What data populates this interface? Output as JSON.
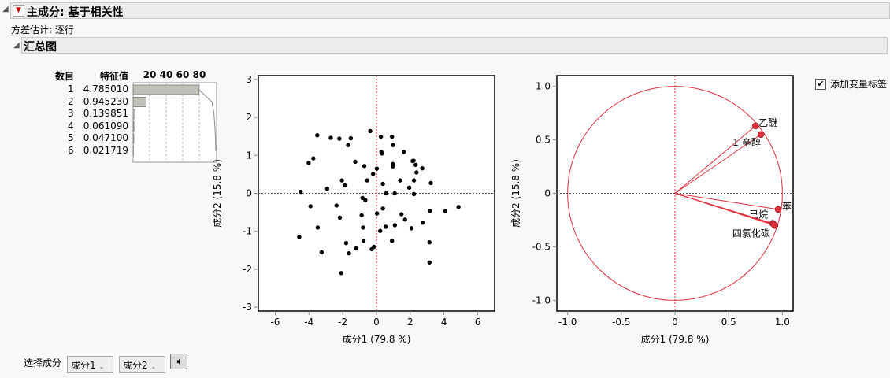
{
  "header": {
    "title": "主成分: 基于相关性",
    "subtitle": "方差估计: 逐行"
  },
  "section": {
    "title": "汇总图"
  },
  "eigen_table": {
    "col_number": "数目",
    "col_eigen": "特征值",
    "percent_ticks": [
      "20",
      "40",
      "60",
      "80"
    ],
    "rows": [
      {
        "n": "1",
        "v": "4.785010"
      },
      {
        "n": "2",
        "v": "0.945230"
      },
      {
        "n": "3",
        "v": "0.139851"
      },
      {
        "n": "4",
        "v": "0.061090"
      },
      {
        "n": "5",
        "v": "0.047100"
      },
      {
        "n": "6",
        "v": "0.021719"
      }
    ],
    "percent": [
      79.75,
      15.75,
      2.33,
      1.02,
      0.79,
      0.36
    ],
    "cumulative": [
      79.75,
      95.5,
      97.83,
      98.85,
      99.64,
      100
    ]
  },
  "chart_data": [
    {
      "type": "scatter",
      "xlabel": "成分1  (79.8 %)",
      "ylabel": "成分2  (15.8 %)",
      "xlim": [
        -7,
        7
      ],
      "ylim": [
        -3.1,
        3.1
      ],
      "xticks": [
        -6,
        -4,
        -2,
        0,
        2,
        4,
        6
      ],
      "yticks": [
        -3,
        -2,
        -1,
        0,
        1,
        2,
        3
      ],
      "reference_line_color": "#e0202e",
      "points": [
        [
          -3.51,
          1.53
        ],
        [
          -2.71,
          1.46
        ],
        [
          -2.2,
          1.44
        ],
        [
          -1.52,
          1.45
        ],
        [
          -1.68,
          1.27
        ],
        [
          -0.37,
          1.64
        ],
        [
          0.26,
          1.49
        ],
        [
          0.92,
          1.49
        ],
        [
          0.98,
          1.27
        ],
        [
          0.29,
          1.09
        ],
        [
          0.32,
          1.05
        ],
        [
          1.62,
          1.09
        ],
        [
          -3.74,
          0.92
        ],
        [
          -4.02,
          0.8
        ],
        [
          -1.26,
          0.83
        ],
        [
          -0.72,
          0.72
        ],
        [
          0.02,
          0.65
        ],
        [
          0.97,
          0.77
        ],
        [
          0.97,
          0.71
        ],
        [
          2.14,
          0.85
        ],
        [
          2.2,
          0.86
        ],
        [
          2.32,
          0.75
        ],
        [
          2.71,
          0.66
        ],
        [
          2.37,
          0.55
        ],
        [
          -0.2,
          0.51
        ],
        [
          -2.05,
          0.34
        ],
        [
          -0.55,
          0.34
        ],
        [
          1.4,
          0.34
        ],
        [
          2.22,
          0.34
        ],
        [
          3.22,
          0.27
        ],
        [
          -1.88,
          0.21
        ],
        [
          0.38,
          0.25
        ],
        [
          -2.92,
          0.12
        ],
        [
          1.94,
          0.15
        ],
        [
          -4.49,
          0.04
        ],
        [
          0.58,
          0
        ],
        [
          1.08,
          0
        ],
        [
          2.22,
          -0.02
        ],
        [
          -0.83,
          -0.12
        ],
        [
          -0.66,
          -0.18
        ],
        [
          -3.91,
          -0.34
        ],
        [
          -2.37,
          -0.32
        ],
        [
          0.38,
          -0.4
        ],
        [
          3.17,
          -0.46
        ],
        [
          4.08,
          -0.47
        ],
        [
          4.86,
          -0.36
        ],
        [
          0.03,
          -0.53
        ],
        [
          -0.88,
          -0.58
        ],
        [
          1.48,
          -0.55
        ],
        [
          -2.17,
          -0.64
        ],
        [
          1.69,
          -0.69
        ],
        [
          2.74,
          -0.77
        ],
        [
          -3.48,
          -0.9
        ],
        [
          -0.8,
          -0.9
        ],
        [
          0.54,
          -0.88
        ],
        [
          1.09,
          -0.84
        ],
        [
          2.08,
          -0.92
        ],
        [
          0.22,
          -0.99
        ],
        [
          -4.58,
          -1.15
        ],
        [
          -0.77,
          -1.25
        ],
        [
          0.92,
          -1.25
        ],
        [
          -1.8,
          -1.31
        ],
        [
          3.14,
          -1.29
        ],
        [
          -1.2,
          -1.45
        ],
        [
          -0.28,
          -1.47
        ],
        [
          -0.15,
          -1.41
        ],
        [
          -3.25,
          -1.55
        ],
        [
          -1.63,
          -1.58
        ],
        [
          3.14,
          -1.82
        ],
        [
          -2.09,
          -2.1
        ]
      ]
    },
    {
      "type": "loading_plot",
      "xlabel": "成分1  (79.8 %)",
      "ylabel": "成分2  (15.8 %)",
      "xlim": [
        -1.1,
        1.1
      ],
      "ylim": [
        -1.1,
        1.1
      ],
      "xticks": [
        "-1.0",
        "-0.5",
        "0",
        "0.5",
        "1.0"
      ],
      "yticks": [
        "-1.0",
        "-0.5",
        "0",
        "0.5",
        "1.0"
      ],
      "color": "#e0303e",
      "variables": [
        {
          "name": "乙醚",
          "x": 0.75,
          "y": 0.63
        },
        {
          "name": "1-辛醇",
          "x": 0.8,
          "y": 0.55
        },
        {
          "name": "苯",
          "x": 0.96,
          "y": -0.15
        },
        {
          "name": "己烷",
          "x": 0.91,
          "y": -0.28
        },
        {
          "name": "四氯化碳",
          "x": 0.93,
          "y": -0.3
        },
        {
          "name": "",
          "x": 0.92,
          "y": -0.29
        }
      ]
    }
  ],
  "checkbox": {
    "label": "添加变量标签",
    "checked": true
  },
  "controls": {
    "label": "选择成分",
    "select1": "成分1",
    "select2": "成分2"
  }
}
